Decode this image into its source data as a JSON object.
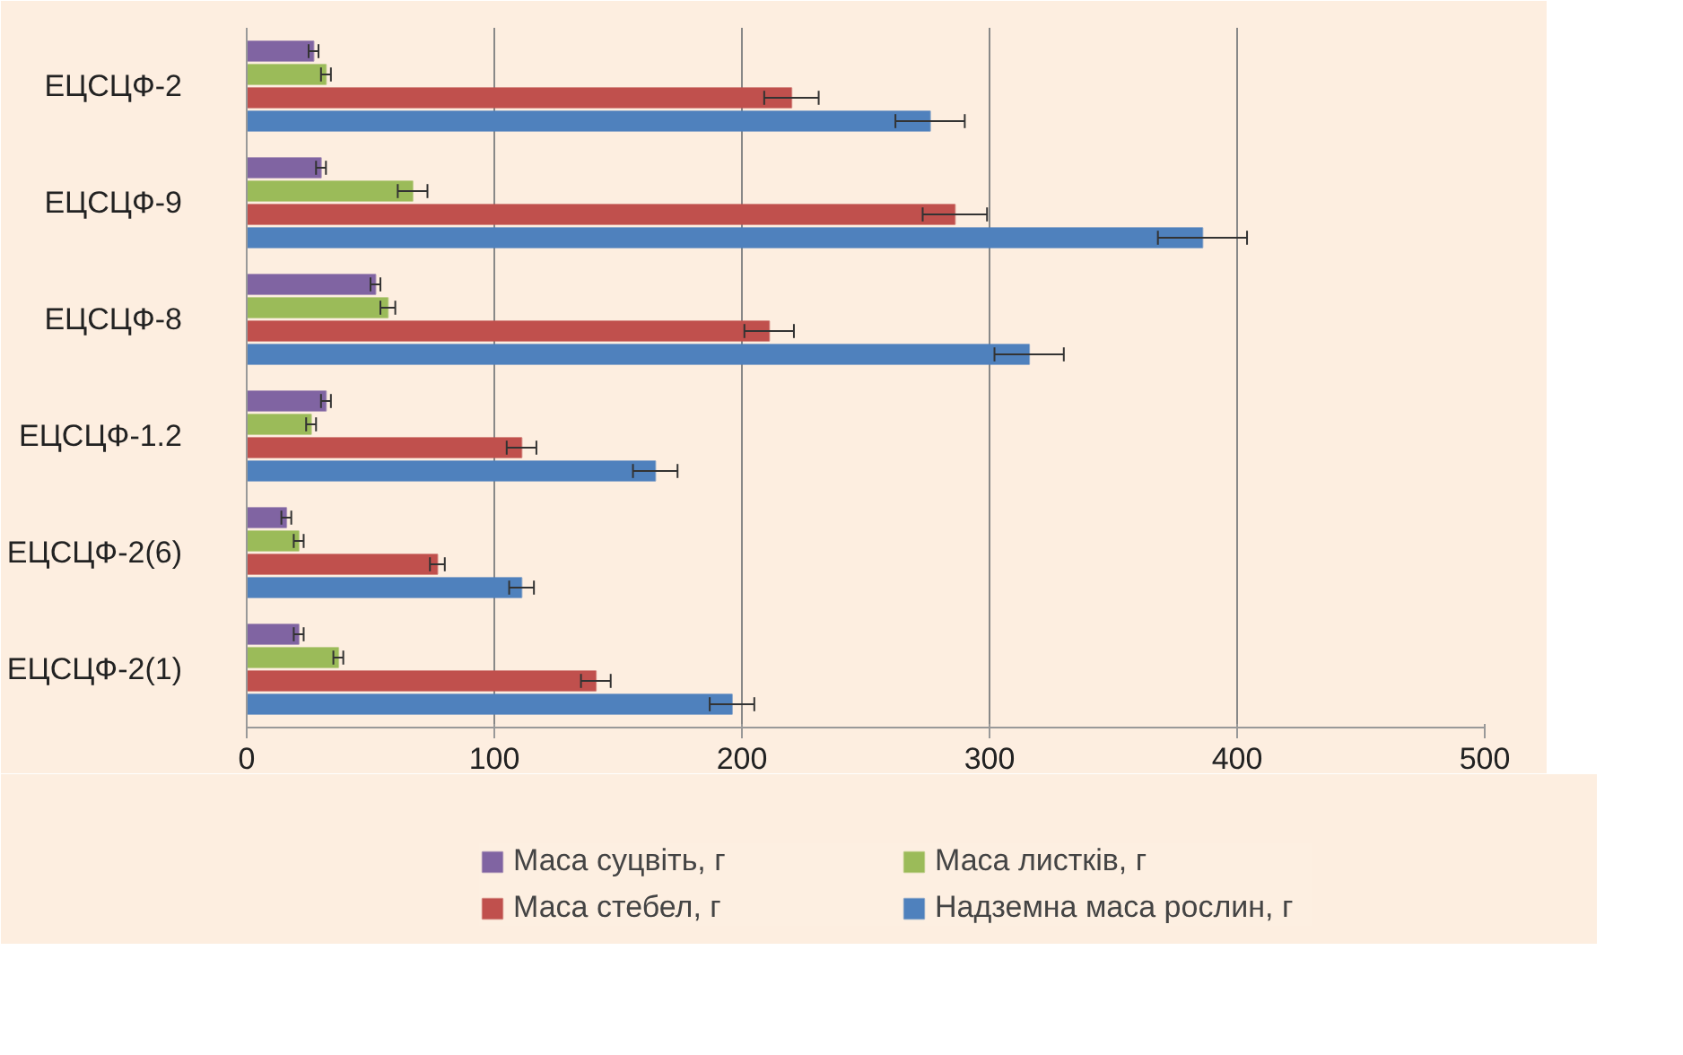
{
  "chart_data": {
    "type": "bar",
    "orientation": "horizontal",
    "categories": [
      "ЕЦСЦФ-2",
      "ЕЦСЦФ-9",
      "ЕЦСЦФ-8",
      "ЕЦСЦФ-1.2",
      "ЕЦСЦФ-2(6)",
      "ЕЦСЦФ-2(1)"
    ],
    "series": [
      {
        "name": "Маса суцвіть, г",
        "color": "#8064a2",
        "values": [
          27,
          30,
          52,
          32,
          16,
          21
        ],
        "errors": [
          2,
          2,
          2,
          2,
          2,
          2
        ]
      },
      {
        "name": "Маса листків, г",
        "color": "#9bbb59",
        "values": [
          32,
          67,
          57,
          26,
          21,
          37
        ],
        "errors": [
          2,
          6,
          3,
          2,
          2,
          2
        ]
      },
      {
        "name": "Маса стебел, г",
        "color": "#c0504d",
        "values": [
          220,
          286,
          211,
          111,
          77,
          141
        ],
        "errors": [
          11,
          13,
          10,
          6,
          3,
          6
        ]
      },
      {
        "name": "Надземна маса рослин, г",
        "color": "#4f81bd",
        "values": [
          276,
          386,
          316,
          165,
          111,
          196
        ],
        "errors": [
          14,
          18,
          14,
          9,
          5,
          9
        ]
      }
    ],
    "xlim": [
      0,
      500
    ],
    "xticks": [
      0,
      100,
      200,
      300,
      400,
      500
    ],
    "grid": "x",
    "legend": "bottom"
  }
}
